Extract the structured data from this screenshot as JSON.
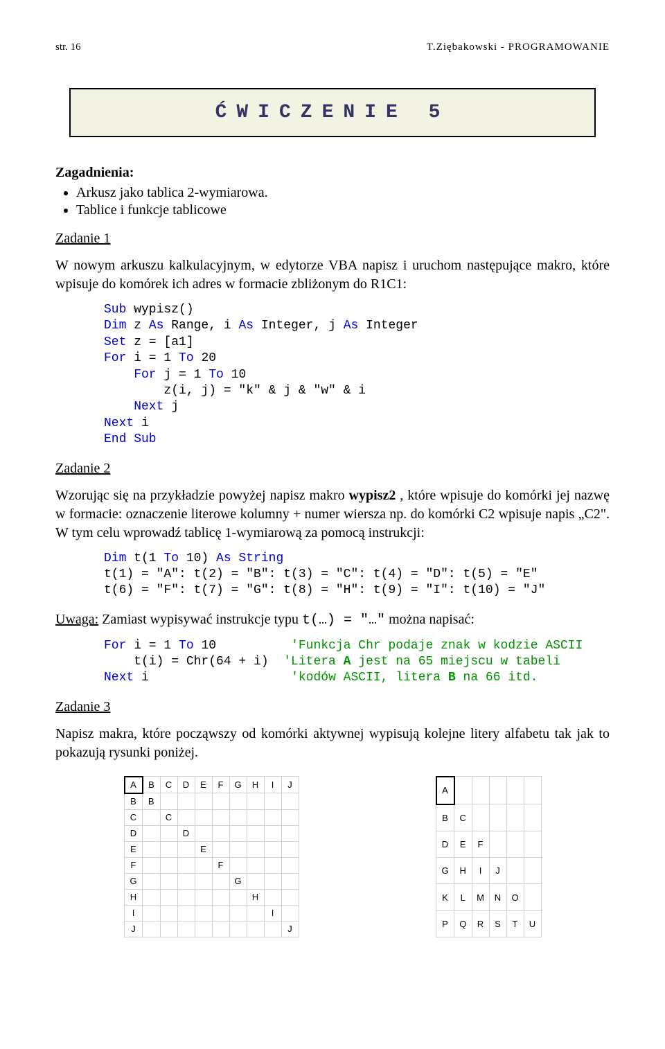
{
  "header": {
    "left": "str. 16",
    "right": "T.Ziębakowski - PROGRAMOWANIE"
  },
  "title": "ĆWICZENIE 5",
  "zagadnienia": {
    "heading": "Zagadnienia:",
    "items": [
      "Arkusz jako tablica 2-wymiarowa.",
      "Tablice i funkcje tablicowe"
    ]
  },
  "zadanie1": {
    "heading": "Zadanie 1",
    "text": "W nowym arkuszu kalkulacyjnym, w edytorze VBA napisz i uruchom następujące makro, które wpisuje do komórek ich adres w formacie zbliżonym do R1C1:"
  },
  "code1": {
    "l1a": "Sub",
    "l1b": " wypisz()",
    "l2a": "Dim",
    "l2b": " z ",
    "l2c": "As",
    "l2d": " Range, i ",
    "l2e": "As",
    "l2f": " Integer, j ",
    "l2g": "As",
    "l2h": " Integer",
    "l3a": "Set",
    "l3b": " z = [a1]",
    "l4a": "For",
    "l4b": " i = 1 ",
    "l4c": "To",
    "l4d": " 20",
    "l5a": "    For",
    "l5b": " j = 1 ",
    "l5c": "To",
    "l5d": " 10",
    "l6": "        z(i, j) = \"k\" & j & \"w\" & i",
    "l7": "    Next",
    "l7b": " j",
    "l8": "Next",
    "l8b": " i",
    "l9": "End Sub"
  },
  "zadanie2": {
    "heading": "Zadanie 2",
    "p1": "Wzorując się na przykładzie powyżej napisz makro ",
    "p1b": "wypisz2",
    "p1c": " , które wpisuje do komórki jej nazwę w formacie: oznaczenie literowe kolumny + numer wiersza np. do komórki C2 wpisuje napis „C2\". W tym celu wprowadź tablicę 1-wymiarową za pomocą instrukcji:"
  },
  "code2": {
    "l1a": "Dim",
    "l1b": " t(1 ",
    "l1c": "To",
    "l1d": " 10) ",
    "l1e": "As String",
    "l2": "t(1) = \"A\": t(2) = \"B\": t(3) = \"C\": t(4) = \"D\": t(5) = \"E\"",
    "l3": "t(6) = \"F\": t(7) = \"G\": t(8) = \"H\": t(9) = \"I\": t(10) = \"J\""
  },
  "uwaga": {
    "label": "Uwaga:",
    "text1": " Zamiast wypisywać instrukcje typu ",
    "mono": "t(…) = \"…\"",
    "text2": "  można napisać:"
  },
  "code3": {
    "l1a": "For",
    "l1b": " i = 1 ",
    "l1c": "To",
    "l1d": " 10          ",
    "l1e": "'Funkcja Chr podaje znak w kodzie ASCII",
    "l2a": "    t(i) = Chr(64 + i)  ",
    "l2b": "'Litera ",
    "l2c": "A",
    "l2d": " jest na 65 miejscu w tabeli",
    "l3a": "Next",
    "l3b": " i                   ",
    "l3c": "'kodów ASCII, litera ",
    "l3d": "B",
    "l3e": " na 66 itd."
  },
  "zadanie3": {
    "heading": "Zadanie 3",
    "text": "Napisz makra, które począwszy od komórki aktywnej wypisują kolejne litery alfabetu tak jak to pokazują rysunki poniżej."
  },
  "grid1": {
    "rows": [
      [
        "A",
        "B",
        "C",
        "D",
        "E",
        "F",
        "G",
        "H",
        "I",
        "J"
      ],
      [
        "B",
        "B",
        "",
        "",
        "",
        "",
        "",
        "",
        "",
        ""
      ],
      [
        "C",
        "",
        "C",
        "",
        "",
        "",
        "",
        "",
        "",
        ""
      ],
      [
        "D",
        "",
        "",
        "D",
        "",
        "",
        "",
        "",
        "",
        ""
      ],
      [
        "E",
        "",
        "",
        "",
        "E",
        "",
        "",
        "",
        "",
        ""
      ],
      [
        "F",
        "",
        "",
        "",
        "",
        "F",
        "",
        "",
        "",
        ""
      ],
      [
        "G",
        "",
        "",
        "",
        "",
        "",
        "G",
        "",
        "",
        ""
      ],
      [
        "H",
        "",
        "",
        "",
        "",
        "",
        "",
        "H",
        "",
        ""
      ],
      [
        "I",
        "",
        "",
        "",
        "",
        "",
        "",
        "",
        "I",
        ""
      ],
      [
        "J",
        "",
        "",
        "",
        "",
        "",
        "",
        "",
        "",
        "J"
      ]
    ]
  },
  "grid2": {
    "rows": [
      [
        "A",
        "",
        "",
        "",
        "",
        ""
      ],
      [
        "B",
        "C",
        "",
        "",
        "",
        ""
      ],
      [
        "D",
        "E",
        "F",
        "",
        "",
        ""
      ],
      [
        "G",
        "H",
        "I",
        "J",
        "",
        ""
      ],
      [
        "K",
        "L",
        "M",
        "N",
        "O",
        ""
      ],
      [
        "P",
        "Q",
        "R",
        "S",
        "T",
        "U"
      ]
    ]
  }
}
